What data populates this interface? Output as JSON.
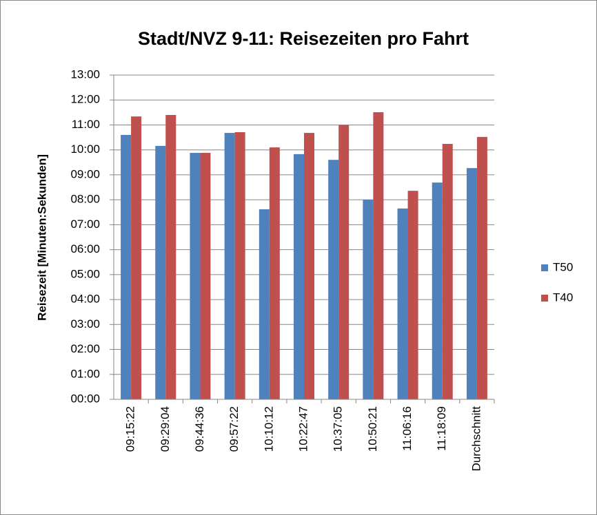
{
  "chart_data": {
    "type": "bar",
    "title": "Stadt/NVZ 9-11: Reisezeiten pro Fahrt",
    "y_label": "Reisezeit  [Minuten:Sekunden]",
    "categories": [
      "09:15:22",
      "09:29:04",
      "09:44:36",
      "09:57:22",
      "10:10:12",
      "10:22:47",
      "10:37:05",
      "10:50:21",
      "11:06:16",
      "11:18:09",
      "Durchschnitt"
    ],
    "series": [
      {
        "name": "T50",
        "color": "#4f81bd",
        "values": [
          10.6,
          10.16,
          9.88,
          10.68,
          7.62,
          9.83,
          9.6,
          8.0,
          7.65,
          8.69,
          9.27
        ]
      },
      {
        "name": "T40",
        "color": "#c0504d",
        "values": [
          11.34,
          11.4,
          9.88,
          10.71,
          10.1,
          10.68,
          10.99,
          11.51,
          8.36,
          10.24,
          10.52
        ]
      }
    ],
    "ylim": [
      0,
      13
    ],
    "yticks": [
      {
        "value": 0,
        "label": "00:00"
      },
      {
        "value": 1,
        "label": "01:00"
      },
      {
        "value": 2,
        "label": "02:00"
      },
      {
        "value": 3,
        "label": "03:00"
      },
      {
        "value": 4,
        "label": "04:00"
      },
      {
        "value": 5,
        "label": "05:00"
      },
      {
        "value": 6,
        "label": "06:00"
      },
      {
        "value": 7,
        "label": "07:00"
      },
      {
        "value": 8,
        "label": "08:00"
      },
      {
        "value": 9,
        "label": "09:00"
      },
      {
        "value": 10,
        "label": "10:00"
      },
      {
        "value": 11,
        "label": "11:00"
      },
      {
        "value": 12,
        "label": "12:00"
      },
      {
        "value": 13,
        "label": "13:00"
      }
    ],
    "grid": true,
    "legend": "right"
  }
}
